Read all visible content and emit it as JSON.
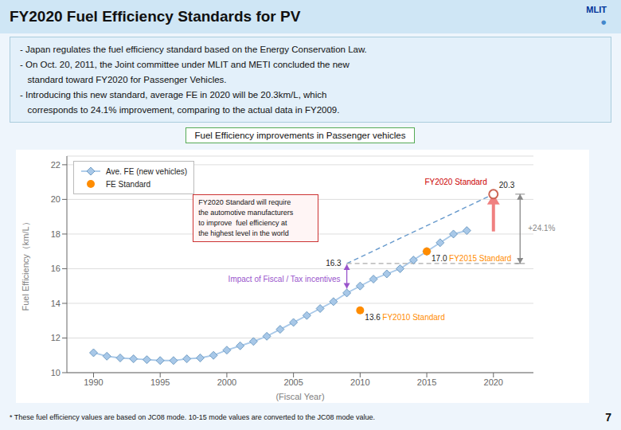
{
  "title": "FY2020 Fuel Efficiency Standards for PV",
  "logo_text": "MLIT",
  "logo_symbol": "●",
  "bullets": [
    "- Japan regulates the fuel efficiency standard based on the Energy Conservation Law.",
    "- On Oct. 20, 2011, the Joint committee under MLIT and METI concluded the new",
    "   standard toward FY2020 for Passenger Vehicles.",
    "- Introducing this new standard, average FE in 2020 will be 20.3km/L, which",
    "   corresponds to 24.1% improvement, comparing to the actual data in FY2009."
  ],
  "footnote": "* These fuel efficiency values are based on JC08 mode.  10-15 mode values are converted to the JC08 mode value.",
  "page_number": "7",
  "chart_data": {
    "type": "line",
    "title": "Fuel Efficiency improvements in Passenger vehicles",
    "xlabel": "(Fiscal Year)",
    "ylabel": "Fuel Efficiency（km/L）",
    "xlim": [
      1988,
      2023
    ],
    "ylim": [
      10,
      22.5
    ],
    "xticks": [
      1990,
      1995,
      2000,
      2005,
      2010,
      2015,
      2020
    ],
    "yticks": [
      10,
      12,
      14,
      16,
      18,
      20,
      22
    ],
    "grid": true,
    "legend": "upper left",
    "series": [
      {
        "name": "Ave. FE (new vehicles)",
        "type": "line",
        "marker": "diamond",
        "color": "#A8C8E8",
        "x": [
          1990,
          1991,
          1992,
          1993,
          1994,
          1995,
          1996,
          1997,
          1998,
          1999,
          2000,
          2001,
          2002,
          2003,
          2004,
          2005,
          2006,
          2007,
          2008,
          2009,
          2010,
          2011,
          2012,
          2013,
          2014,
          2015,
          2016,
          2017,
          2018
        ],
        "values": [
          11.15,
          10.95,
          10.85,
          10.8,
          10.75,
          10.7,
          10.7,
          10.8,
          10.85,
          11.0,
          11.3,
          11.55,
          11.8,
          12.1,
          12.5,
          12.9,
          13.3,
          13.7,
          14.1,
          14.6,
          15.0,
          15.4,
          15.7,
          16.0,
          16.5,
          17.0,
          17.5,
          18.0,
          18.2
        ]
      },
      {
        "type": "line",
        "line_style": "dashed",
        "color": "#6699CC",
        "x": [
          2009,
          2020
        ],
        "values": [
          16.3,
          20.3
        ],
        "data_labels": true
      },
      {
        "type": "line",
        "line_style": "dashed",
        "color": "#AAAAAA",
        "x": [
          2009,
          2022
        ],
        "values": [
          16.3,
          16.3
        ]
      },
      {
        "name": "FE Standard",
        "type": "scatter",
        "marker": "circle",
        "color": "#FF8C00",
        "x": [
          2010,
          2015
        ],
        "values": [
          13.6,
          17.0
        ],
        "data_labels": true,
        "value_labels": [
          "13.6",
          "17.0"
        ]
      },
      {
        "type": "scatter",
        "marker": "open_circle",
        "color": "#CC6655",
        "x": [
          2020
        ],
        "values": [
          20.3
        ]
      },
      {
        "type": "arrow",
        "color": "#F08080",
        "x": [
          2020,
          2020
        ],
        "values": [
          18.15,
          20.3
        ]
      },
      {
        "type": "bracket",
        "color": "#888888",
        "x": [
          2022,
          2022
        ],
        "values": [
          16.3,
          20.3
        ]
      },
      {
        "type": "double_arrow",
        "color": "#9955CC",
        "x": [
          2009,
          2009
        ],
        "values": [
          14.85,
          16.25
        ]
      }
    ],
    "annotations": [
      {
        "text": "FY2020 Standard",
        "color": "#CC0000",
        "x": 2020,
        "y": 20.3,
        "position": "above_left"
      },
      {
        "text": "FY2015 Standard",
        "color": "#FF8C00",
        "x": 2015,
        "y": 17.0,
        "position": "below_right"
      },
      {
        "text": "FY2010 Standard",
        "color": "#FF8C00",
        "x": 2010,
        "y": 13.6,
        "position": "below_right"
      },
      {
        "text": "+24.1%",
        "color": "#888888",
        "x": 2022,
        "y": 18.3,
        "position": "right"
      },
      {
        "text": "Impact of Fiscal / Tax incentives",
        "color": "#9955CC",
        "x": 2009,
        "y": 15.35,
        "position": "left"
      }
    ],
    "note": [
      "FY2020 Standard will require",
      "the automotive manufacturers",
      "to improve  fuel efficiency at",
      "the highest level in the world"
    ]
  }
}
